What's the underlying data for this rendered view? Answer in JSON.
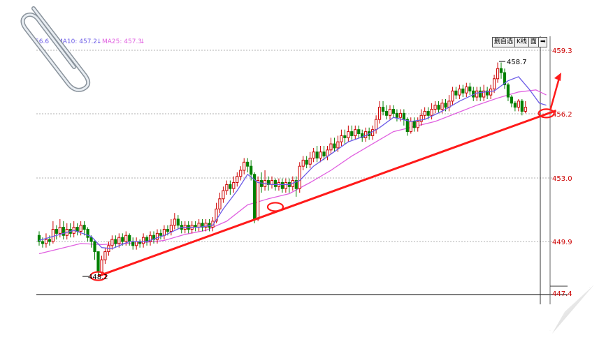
{
  "legend": [
    {
      "text": "56.6",
      "color": "#6c5ce7"
    },
    {
      "text": "MA10: 457.2",
      "arrow": "↓",
      "color": "#6c5ce7"
    },
    {
      "text": "MA25: 457.3",
      "arrow": "↓",
      "color": "#e060e0"
    }
  ],
  "toolbar": [
    "删自选",
    "K线",
    "面",
    "➡"
  ],
  "chart_data": {
    "type": "candlestick",
    "y_ticks": [
      "459.3",
      "456.2",
      "453.0",
      "449.9",
      "447.4"
    ],
    "ylim": [
      447.4,
      459.3
    ],
    "annotations": {
      "high": "458.7",
      "low": "448.2"
    },
    "grid": true,
    "colors": {
      "up": "#cc0000",
      "down": "#008000",
      "ma_short": "#6c5ce7",
      "ma_long": "#e060e0",
      "trendline": "#ff1a1a"
    },
    "candles": [
      [
        450.2,
        449.9,
        450.4,
        449.7
      ],
      [
        449.9,
        449.8,
        450.1,
        449.6
      ],
      [
        449.8,
        450.0,
        450.3,
        449.6
      ],
      [
        450.0,
        449.9,
        450.2,
        449.7
      ],
      [
        449.9,
        450.5,
        450.9,
        449.8
      ],
      [
        450.5,
        450.3,
        450.7,
        450.0
      ],
      [
        450.3,
        450.6,
        451.0,
        450.1
      ],
      [
        450.6,
        450.2,
        450.9,
        450.0
      ],
      [
        450.2,
        450.5,
        450.8,
        450.0
      ],
      [
        450.5,
        450.3,
        450.8,
        450.1
      ],
      [
        450.3,
        450.6,
        450.9,
        450.1
      ],
      [
        450.6,
        450.4,
        450.8,
        450.2
      ],
      [
        450.4,
        450.7,
        450.9,
        450.2
      ],
      [
        450.7,
        450.5,
        450.9,
        450.2
      ],
      [
        450.5,
        450.1,
        450.6,
        449.9
      ],
      [
        450.1,
        449.9,
        450.2,
        449.6
      ],
      [
        449.9,
        449.4,
        450.0,
        449.0
      ],
      [
        449.4,
        448.4,
        449.4,
        448.2
      ],
      [
        448.4,
        449.0,
        449.2,
        448.3
      ],
      [
        449.0,
        449.4,
        449.6,
        448.8
      ],
      [
        449.4,
        449.7,
        449.9,
        449.2
      ],
      [
        449.7,
        450.0,
        450.2,
        449.5
      ],
      [
        450.0,
        449.8,
        450.2,
        449.6
      ],
      [
        449.8,
        450.1,
        450.3,
        449.6
      ],
      [
        450.1,
        449.9,
        450.3,
        449.7
      ],
      [
        449.9,
        450.2,
        450.4,
        449.7
      ],
      [
        450.2,
        449.9,
        450.3,
        449.7
      ],
      [
        449.9,
        449.7,
        450.1,
        449.5
      ],
      [
        449.7,
        449.9,
        450.1,
        449.5
      ],
      [
        449.9,
        449.8,
        450.0,
        449.6
      ],
      [
        449.8,
        450.1,
        450.3,
        449.6
      ],
      [
        450.1,
        449.9,
        450.2,
        449.7
      ],
      [
        449.9,
        450.2,
        450.4,
        449.7
      ],
      [
        450.2,
        450.0,
        450.4,
        449.8
      ],
      [
        450.0,
        450.3,
        450.5,
        449.8
      ],
      [
        450.3,
        450.2,
        450.5,
        450.0
      ],
      [
        450.2,
        450.5,
        450.7,
        450.0
      ],
      [
        450.5,
        450.4,
        450.7,
        450.2
      ],
      [
        450.4,
        450.7,
        451.0,
        450.2
      ],
      [
        450.7,
        451.0,
        451.3,
        450.5
      ],
      [
        451.0,
        450.7,
        451.2,
        450.5
      ],
      [
        450.7,
        450.5,
        450.9,
        450.3
      ],
      [
        450.5,
        450.7,
        450.9,
        450.3
      ],
      [
        450.7,
        450.5,
        450.9,
        450.3
      ],
      [
        450.5,
        450.7,
        450.9,
        450.3
      ],
      [
        450.7,
        450.6,
        450.9,
        450.4
      ],
      [
        450.6,
        450.8,
        451.0,
        450.4
      ],
      [
        450.8,
        450.6,
        451.0,
        450.4
      ],
      [
        450.6,
        450.8,
        451.0,
        450.4
      ],
      [
        450.8,
        450.6,
        451.0,
        450.4
      ],
      [
        450.6,
        450.9,
        451.1,
        450.4
      ],
      [
        450.9,
        451.5,
        451.8,
        450.8
      ],
      [
        451.5,
        452.0,
        452.3,
        451.3
      ],
      [
        452.0,
        452.4,
        452.6,
        451.8
      ],
      [
        452.4,
        452.7,
        452.9,
        452.2
      ],
      [
        452.7,
        452.5,
        452.9,
        452.2
      ],
      [
        452.5,
        452.8,
        453.1,
        452.3
      ],
      [
        452.8,
        453.1,
        453.3,
        452.6
      ],
      [
        453.1,
        453.4,
        453.6,
        452.9
      ],
      [
        453.4,
        453.8,
        454.0,
        453.2
      ],
      [
        453.8,
        453.6,
        454.0,
        453.3
      ],
      [
        453.6,
        453.2,
        453.9,
        452.9
      ],
      [
        453.2,
        451.0,
        453.3,
        450.8
      ],
      [
        451.0,
        452.9,
        453.1,
        450.9
      ],
      [
        452.9,
        452.6,
        453.3,
        452.3
      ],
      [
        452.6,
        452.9,
        453.4,
        452.4
      ],
      [
        452.9,
        452.7,
        453.1,
        452.4
      ],
      [
        452.7,
        452.9,
        453.1,
        452.5
      ],
      [
        452.9,
        452.6,
        453.0,
        452.4
      ],
      [
        452.6,
        452.8,
        453.0,
        452.4
      ],
      [
        452.8,
        452.5,
        453.0,
        452.3
      ],
      [
        452.5,
        452.8,
        453.0,
        452.3
      ],
      [
        452.8,
        452.6,
        453.0,
        452.3
      ],
      [
        452.6,
        452.9,
        453.1,
        452.4
      ],
      [
        452.9,
        452.5,
        453.1,
        452.1
      ],
      [
        452.5,
        453.6,
        453.8,
        452.3
      ],
      [
        453.6,
        453.9,
        454.1,
        453.4
      ],
      [
        453.9,
        453.7,
        454.1,
        453.5
      ],
      [
        453.7,
        454.0,
        454.3,
        453.5
      ],
      [
        454.0,
        454.3,
        454.5,
        453.8
      ],
      [
        454.3,
        454.0,
        454.6,
        453.8
      ],
      [
        454.0,
        454.3,
        454.6,
        453.8
      ],
      [
        454.3,
        454.1,
        454.6,
        453.9
      ],
      [
        454.1,
        454.4,
        454.6,
        453.9
      ],
      [
        454.4,
        454.7,
        455.0,
        454.2
      ],
      [
        454.7,
        454.5,
        455.0,
        454.3
      ],
      [
        454.5,
        454.8,
        455.1,
        454.3
      ],
      [
        454.8,
        455.1,
        455.4,
        454.6
      ],
      [
        455.1,
        455.0,
        455.4,
        454.7
      ],
      [
        455.0,
        455.3,
        455.6,
        454.8
      ],
      [
        455.3,
        455.1,
        455.6,
        454.9
      ],
      [
        455.1,
        455.4,
        455.6,
        454.9
      ],
      [
        455.4,
        455.2,
        455.6,
        455.0
      ],
      [
        455.2,
        455.0,
        455.4,
        454.8
      ],
      [
        455.0,
        455.3,
        455.5,
        454.8
      ],
      [
        455.3,
        455.1,
        455.5,
        454.9
      ],
      [
        455.1,
        455.4,
        455.6,
        454.9
      ],
      [
        455.4,
        455.9,
        456.1,
        455.2
      ],
      [
        455.9,
        456.5,
        456.8,
        455.7
      ],
      [
        456.5,
        456.3,
        456.8,
        456.1
      ],
      [
        456.3,
        456.1,
        456.6,
        455.9
      ],
      [
        456.1,
        456.4,
        456.6,
        455.9
      ],
      [
        456.4,
        456.2,
        456.6,
        456.0
      ],
      [
        456.2,
        456.0,
        456.4,
        455.8
      ],
      [
        456.0,
        456.2,
        456.4,
        455.8
      ],
      [
        456.2,
        455.9,
        456.4,
        455.6
      ],
      [
        455.9,
        455.3,
        456.0,
        455.1
      ],
      [
        455.3,
        455.8,
        456.0,
        455.2
      ],
      [
        455.8,
        455.5,
        456.0,
        455.3
      ],
      [
        455.5,
        455.8,
        456.0,
        455.3
      ],
      [
        455.8,
        456.1,
        456.4,
        455.6
      ],
      [
        456.1,
        456.3,
        456.5,
        455.9
      ],
      [
        456.3,
        456.1,
        456.5,
        455.9
      ],
      [
        456.1,
        456.4,
        456.7,
        455.9
      ],
      [
        456.4,
        456.6,
        456.8,
        456.2
      ],
      [
        456.6,
        456.4,
        456.8,
        456.2
      ],
      [
        456.4,
        456.7,
        456.9,
        456.2
      ],
      [
        456.7,
        456.5,
        456.9,
        456.3
      ],
      [
        456.5,
        456.8,
        457.1,
        456.3
      ],
      [
        456.8,
        457.3,
        457.5,
        456.6
      ],
      [
        457.3,
        457.1,
        457.5,
        456.9
      ],
      [
        457.1,
        457.4,
        457.6,
        456.9
      ],
      [
        457.4,
        457.2,
        457.6,
        457.0
      ],
      [
        457.2,
        457.5,
        457.7,
        457.0
      ],
      [
        457.5,
        457.3,
        457.7,
        457.1
      ],
      [
        457.3,
        457.0,
        457.5,
        456.8
      ],
      [
        457.0,
        457.3,
        457.5,
        456.8
      ],
      [
        457.3,
        457.0,
        457.5,
        456.8
      ],
      [
        457.0,
        457.3,
        457.6,
        456.8
      ],
      [
        457.3,
        457.1,
        457.5,
        456.9
      ],
      [
        457.1,
        457.4,
        457.6,
        456.9
      ],
      [
        457.4,
        457.9,
        458.1,
        457.2
      ],
      [
        457.9,
        458.4,
        458.7,
        457.7
      ],
      [
        458.4,
        458.2,
        458.7,
        457.9
      ],
      [
        458.2,
        457.6,
        458.4,
        457.4
      ],
      [
        457.6,
        457.0,
        457.7,
        456.8
      ],
      [
        457.0,
        456.7,
        457.1,
        456.5
      ],
      [
        456.7,
        456.5,
        456.8,
        456.3
      ],
      [
        456.5,
        456.8,
        456.9,
        456.3
      ],
      [
        456.8,
        456.3,
        456.9,
        456.1
      ],
      [
        456.3,
        456.5,
        456.8,
        456.2
      ]
    ],
    "ma_short": [
      [
        0,
        449.95
      ],
      [
        5,
        450.2
      ],
      [
        10,
        450.45
      ],
      [
        15,
        450.15
      ],
      [
        18,
        449.6
      ],
      [
        21,
        449.55
      ],
      [
        26,
        449.9
      ],
      [
        31,
        449.9
      ],
      [
        36,
        450.2
      ],
      [
        41,
        450.6
      ],
      [
        46,
        450.6
      ],
      [
        50,
        450.7
      ],
      [
        53,
        451.5
      ],
      [
        57,
        452.4
      ],
      [
        60,
        453.2
      ],
      [
        63,
        452.8
      ],
      [
        67,
        452.7
      ],
      [
        72,
        452.7
      ],
      [
        75,
        452.9
      ],
      [
        79,
        453.6
      ],
      [
        84,
        454.2
      ],
      [
        89,
        454.8
      ],
      [
        94,
        455.1
      ],
      [
        98,
        455.5
      ],
      [
        102,
        456.0
      ],
      [
        107,
        455.8
      ],
      [
        111,
        455.9
      ],
      [
        116,
        456.3
      ],
      [
        121,
        456.8
      ],
      [
        126,
        457.2
      ],
      [
        131,
        457.3
      ],
      [
        135,
        457.8
      ],
      [
        138,
        458.0
      ],
      [
        141,
        457.4
      ],
      [
        144,
        456.7
      ],
      [
        146,
        456.6
      ]
    ],
    "ma_long": [
      [
        0,
        449.3
      ],
      [
        6,
        449.55
      ],
      [
        12,
        449.8
      ],
      [
        18,
        449.75
      ],
      [
        24,
        449.8
      ],
      [
        30,
        449.85
      ],
      [
        36,
        449.95
      ],
      [
        42,
        450.25
      ],
      [
        48,
        450.45
      ],
      [
        54,
        450.9
      ],
      [
        60,
        451.7
      ],
      [
        66,
        452.0
      ],
      [
        72,
        452.25
      ],
      [
        78,
        452.8
      ],
      [
        84,
        453.4
      ],
      [
        90,
        454.1
      ],
      [
        96,
        454.7
      ],
      [
        102,
        455.3
      ],
      [
        108,
        455.55
      ],
      [
        114,
        455.8
      ],
      [
        120,
        456.2
      ],
      [
        126,
        456.6
      ],
      [
        132,
        456.95
      ],
      [
        138,
        457.25
      ],
      [
        143,
        457.35
      ],
      [
        146,
        457.1
      ]
    ],
    "trendline": [
      [
        17,
        448.2
      ],
      [
        146,
        456.2
      ]
    ],
    "support_circles": [
      [
        17,
        448.2
      ],
      [
        68,
        451.6
      ],
      [
        146,
        456.2
      ]
    ]
  }
}
